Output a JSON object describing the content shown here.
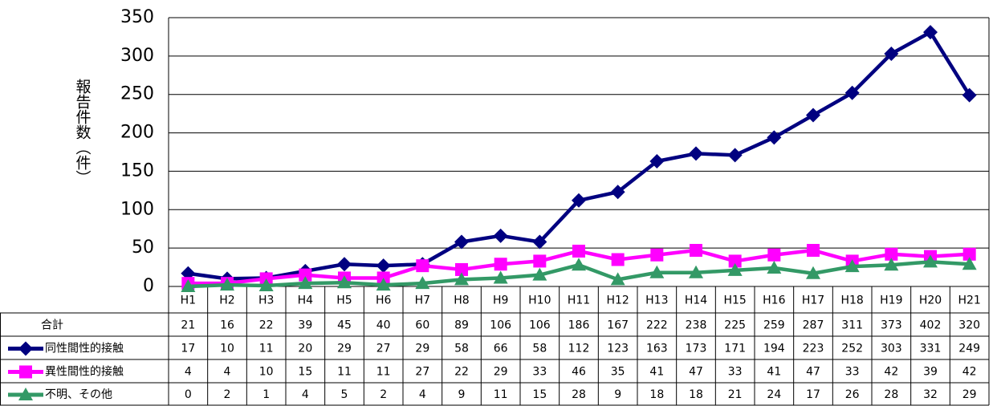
{
  "chart_data": {
    "type": "line",
    "y_label": "報告件数（件）",
    "categories": [
      "H1",
      "H2",
      "H3",
      "H4",
      "H5",
      "H6",
      "H7",
      "H8",
      "H9",
      "H10",
      "H11",
      "H12",
      "H13",
      "H14",
      "H15",
      "H16",
      "H17",
      "H18",
      "H19",
      "H20",
      "H21"
    ],
    "totals": {
      "name": "合計",
      "values": [
        21,
        16,
        22,
        39,
        45,
        40,
        60,
        89,
        106,
        106,
        186,
        167,
        222,
        238,
        225,
        259,
        287,
        311,
        373,
        402,
        320
      ]
    },
    "series": [
      {
        "name": "同性間性的接触",
        "color": "#000080",
        "marker": "diamond",
        "values": [
          17,
          10,
          11,
          20,
          29,
          27,
          29,
          58,
          66,
          58,
          112,
          123,
          163,
          173,
          171,
          194,
          223,
          252,
          303,
          331,
          249
        ]
      },
      {
        "name": "異性間性的接触",
        "color": "#ff00ff",
        "marker": "square",
        "values": [
          4,
          4,
          10,
          15,
          11,
          11,
          27,
          22,
          29,
          33,
          46,
          35,
          41,
          47,
          33,
          41,
          47,
          33,
          42,
          39,
          42
        ]
      },
      {
        "name": "不明、その他",
        "color": "#339966",
        "marker": "triangle",
        "values": [
          0,
          2,
          1,
          4,
          5,
          2,
          4,
          9,
          11,
          15,
          28,
          9,
          18,
          18,
          21,
          24,
          17,
          26,
          28,
          32,
          29
        ]
      }
    ],
    "ylim": [
      0,
      350
    ],
    "yticks": [
      0,
      50,
      100,
      150,
      200,
      250,
      300,
      350
    ],
    "grid": true
  }
}
